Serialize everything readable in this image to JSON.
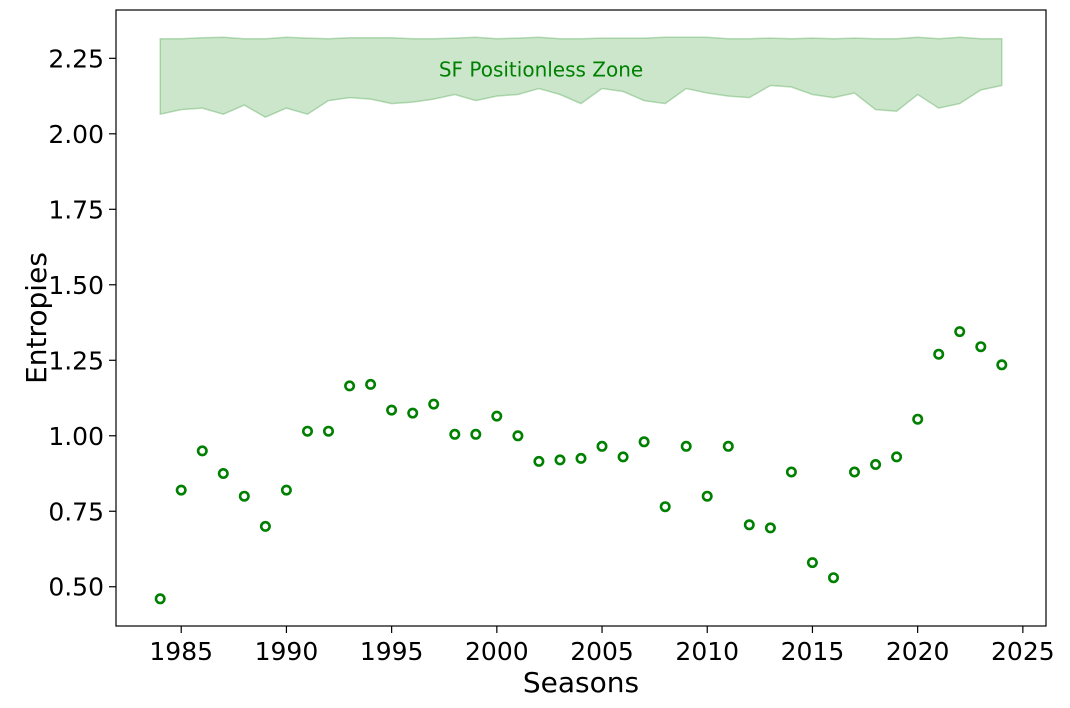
{
  "chart_data": {
    "type": "scatter",
    "title": "",
    "xlabel": "Seasons",
    "ylabel": "Entropies",
    "xlim": [
      1981.9,
      2026.1
    ],
    "ylim": [
      0.37,
      2.41
    ],
    "xticks": [
      1985,
      1990,
      1995,
      2000,
      2005,
      2010,
      2015,
      2020,
      2025
    ],
    "yticks": [
      0.5,
      0.75,
      1.0,
      1.25,
      1.5,
      1.75,
      2.0,
      2.25
    ],
    "ytick_labels": [
      "0.50",
      "0.75",
      "1.00",
      "1.25",
      "1.50",
      "1.75",
      "2.00",
      "2.25"
    ],
    "grid": false,
    "marker": "hollow circle",
    "marker_color": "#008000",
    "series": [
      {
        "x": [
          1984,
          1985,
          1986,
          1987,
          1988,
          1989,
          1990,
          1991,
          1992,
          1993,
          1994,
          1995,
          1996,
          1997,
          1998,
          1999,
          2000,
          2001,
          2002,
          2003,
          2004,
          2005,
          2006,
          2007,
          2008,
          2009,
          2010,
          2011,
          2012,
          2013,
          2014,
          2015,
          2016,
          2017,
          2018,
          2019,
          2020,
          2021,
          2022,
          2023,
          2024
        ],
        "y": [
          0.46,
          0.82,
          0.95,
          0.875,
          0.8,
          0.7,
          0.82,
          1.015,
          1.015,
          1.165,
          1.17,
          1.085,
          1.075,
          1.105,
          1.005,
          1.005,
          1.065,
          1.0,
          0.915,
          0.92,
          0.925,
          0.965,
          0.93,
          0.98,
          0.765,
          0.965,
          0.8,
          0.965,
          0.705,
          0.695,
          0.88,
          0.58,
          0.53,
          0.88,
          0.905,
          0.93,
          1.055,
          1.27,
          1.345,
          1.295,
          1.235
        ]
      }
    ],
    "zone": {
      "label": "SF Positionless Zone",
      "color": "#008000",
      "fill_opacity": 0.2,
      "x": [
        1984,
        1985,
        1986,
        1987,
        1988,
        1989,
        1990,
        1991,
        1992,
        1993,
        1994,
        1995,
        1996,
        1997,
        1998,
        1999,
        2000,
        2001,
        2002,
        2003,
        2004,
        2005,
        2006,
        2007,
        2008,
        2009,
        2010,
        2011,
        2012,
        2013,
        2014,
        2015,
        2016,
        2017,
        2018,
        2019,
        2020,
        2021,
        2022,
        2023,
        2024
      ],
      "lower": [
        2.065,
        2.08,
        2.085,
        2.065,
        2.095,
        2.055,
        2.085,
        2.065,
        2.11,
        2.12,
        2.115,
        2.1,
        2.105,
        2.115,
        2.13,
        2.11,
        2.125,
        2.13,
        2.15,
        2.13,
        2.1,
        2.15,
        2.14,
        2.11,
        2.1,
        2.15,
        2.135,
        2.125,
        2.12,
        2.16,
        2.155,
        2.13,
        2.12,
        2.135,
        2.08,
        2.075,
        2.13,
        2.085,
        2.1,
        2.145,
        2.16
      ],
      "upper": [
        2.315,
        2.315,
        2.318,
        2.32,
        2.315,
        2.315,
        2.32,
        2.317,
        2.315,
        2.318,
        2.318,
        2.318,
        2.315,
        2.315,
        2.317,
        2.32,
        2.315,
        2.317,
        2.32,
        2.315,
        2.315,
        2.317,
        2.317,
        2.317,
        2.32,
        2.32,
        2.32,
        2.315,
        2.315,
        2.317,
        2.315,
        2.317,
        2.315,
        2.317,
        2.315,
        2.315,
        2.32,
        2.315,
        2.32,
        2.315,
        2.315
      ]
    }
  }
}
